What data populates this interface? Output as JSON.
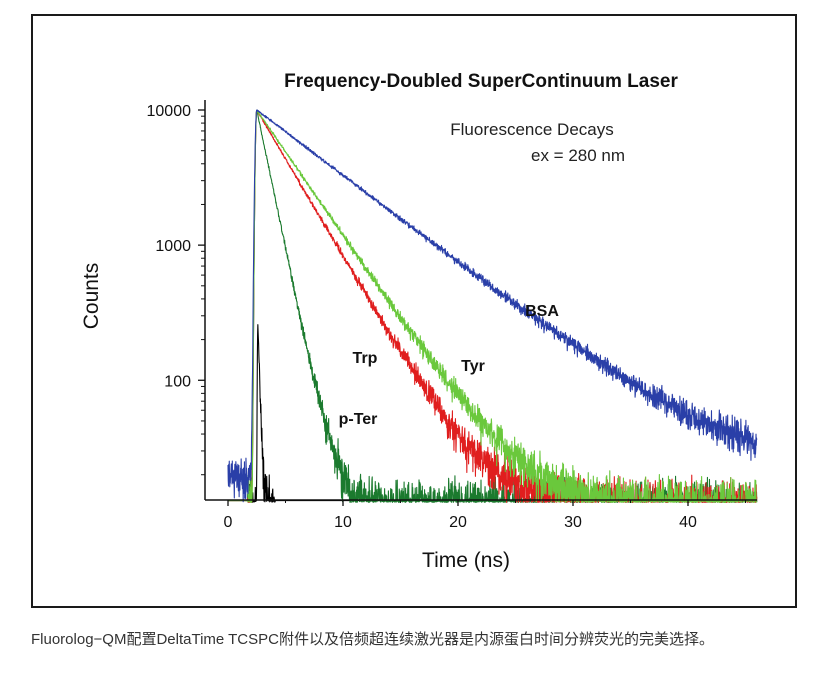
{
  "chart_data": {
    "type": "line",
    "title": "Frequency-Doubled SuperContinuum Laser",
    "annotation": {
      "line1": "Fluorescence Decays",
      "line2": "ex = 280 nm"
    },
    "xlabel": "Time (ns)",
    "ylabel": "Counts",
    "y_scale": "log",
    "xlim": [
      -2,
      46
    ],
    "ylim": [
      13,
      10000
    ],
    "x_ticks": [
      0,
      10,
      20,
      30,
      40
    ],
    "y_ticks": [
      100,
      1000,
      10000
    ],
    "series": [
      {
        "name": "IRF",
        "label": "",
        "color": "#000000",
        "peak_time": 2.6,
        "peak": 250,
        "tau": 0.15,
        "rise": 0.1,
        "noise_floor": 13
      },
      {
        "name": "p-Ter",
        "label": "p-Ter",
        "color": "#1b7a2e",
        "peak_time": 2.5,
        "peak": 10000,
        "tau": 1.06,
        "rise": 0.25,
        "noise_floor": 13
      },
      {
        "name": "Trp",
        "label": "Trp",
        "color": "#e01e1e",
        "peak_time": 2.5,
        "peak": 10000,
        "tau": 3.0,
        "rise": 0.25,
        "noise_floor": 13
      },
      {
        "name": "Tyr",
        "label": "Tyr",
        "color": "#6ac83c",
        "peak_time": 2.5,
        "peak": 10000,
        "tau": 3.5,
        "rise": 0.25,
        "noise_floor": 13
      },
      {
        "name": "BSA",
        "label": "BSA",
        "color": "#2a3fa8",
        "peak_time": 2.5,
        "peak": 10000,
        "tau": 6.7,
        "rise": 0.3,
        "noise_floor": 22
      }
    ]
  },
  "caption": "Fluorolog−QM配置DeltaTime  TCSPC附件以及倍频超连续激光器是内源蛋白时间分辨荧光的完美选择。"
}
